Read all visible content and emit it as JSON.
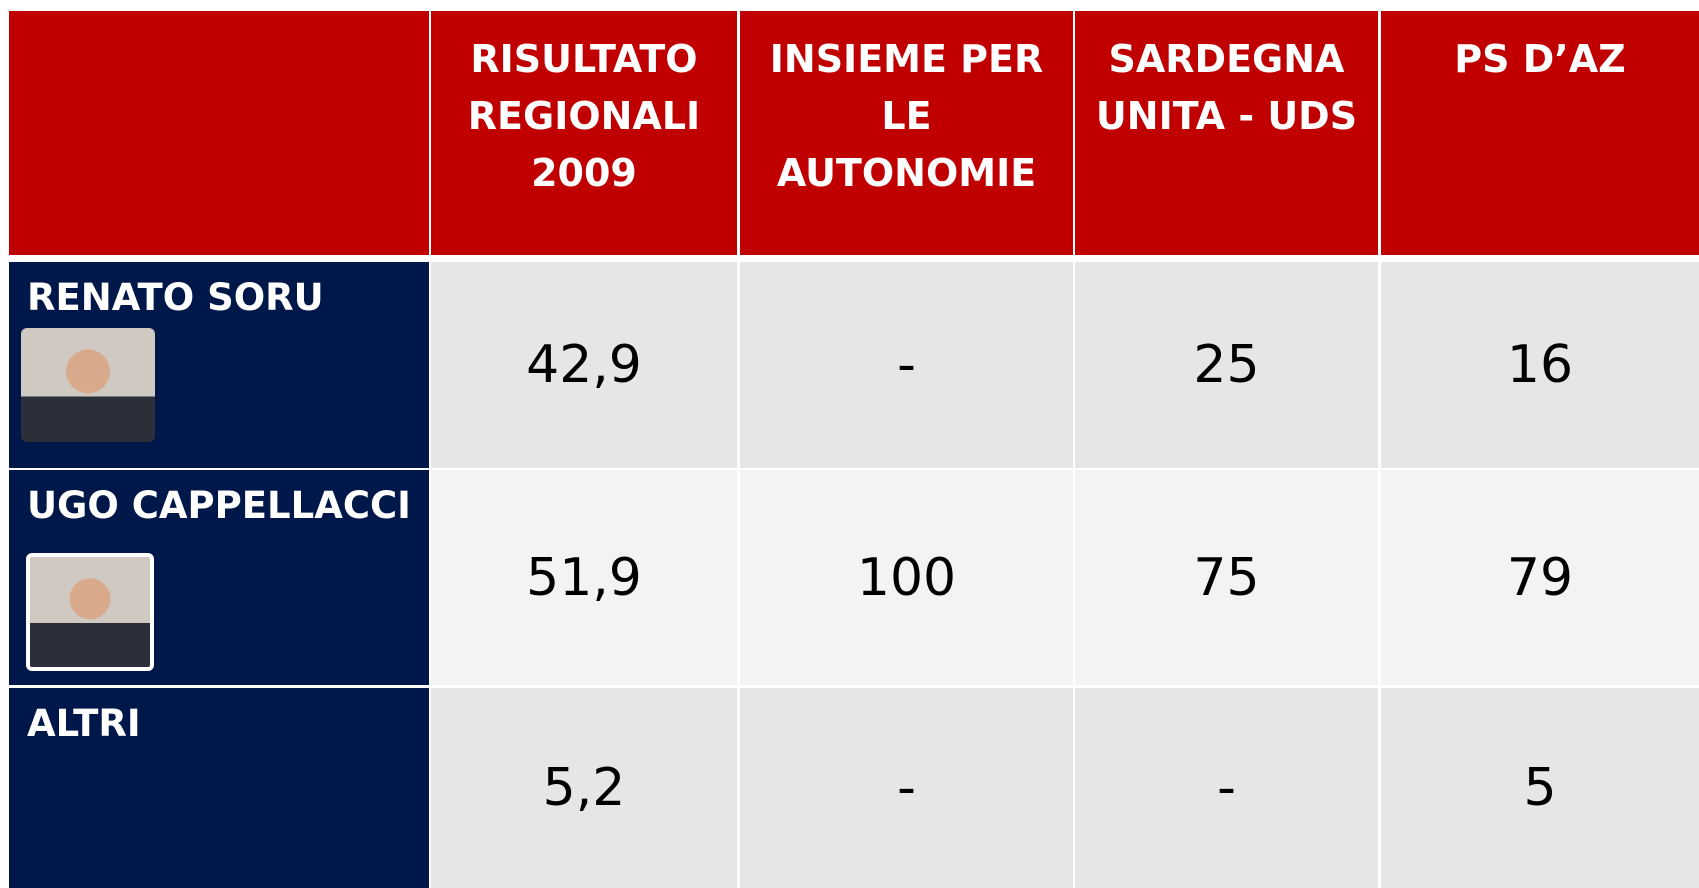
{
  "table": {
    "header": [
      "RISULTATO\nREGIONALI\n2009",
      "INSIEME PER\nLE\nAUTONOMIE",
      "SARDEGNA\nUNITA - UDS",
      "PS D’AZ"
    ],
    "rows": [
      {
        "name": "RENATO SORU",
        "values": [
          "42,9",
          "-",
          "25",
          "16"
        ]
      },
      {
        "name": "UGO CAPPELLACCI",
        "values": [
          "51,9",
          "100",
          "75",
          "79"
        ]
      },
      {
        "name": "ALTRI",
        "values": [
          "5,2",
          "-",
          "-",
          "5"
        ]
      }
    ]
  }
}
